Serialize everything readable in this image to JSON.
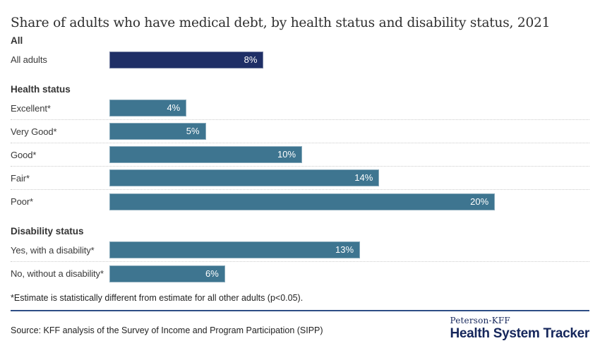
{
  "title": "Share of adults who have medical debt, by health status and disability status, 2021",
  "chart_data": {
    "type": "bar",
    "orientation": "horizontal",
    "unit": "percent",
    "xlim": [
      0,
      24.9
    ],
    "grid": "dotted-row-separators",
    "value_labels": "inside-right-white",
    "sections": [
      {
        "header": "All",
        "rows": [
          {
            "label": "All adults",
            "value": 8,
            "display": "8%"
          }
        ],
        "bar_color": "#1f2f66"
      },
      {
        "header": "Health status",
        "rows": [
          {
            "label": "Excellent*",
            "value": 4,
            "display": "4%"
          },
          {
            "label": "Very Good*",
            "value": 5,
            "display": "5%"
          },
          {
            "label": "Good*",
            "value": 10,
            "display": "10%"
          },
          {
            "label": "Fair*",
            "value": 14,
            "display": "14%"
          },
          {
            "label": "Poor*",
            "value": 20,
            "display": "20%"
          }
        ],
        "bar_color": "#3e7590"
      },
      {
        "header": "Disability status",
        "rows": [
          {
            "label": "Yes, with a disability*",
            "value": 13,
            "display": "13%"
          },
          {
            "label": "No, without a disability*",
            "value": 6,
            "display": "6%"
          }
        ],
        "bar_color": "#3e7590"
      }
    ]
  },
  "footnote": "*Estimate is statistically different from estimate for all other adults (p<0.05).",
  "source": "Source: KFF analysis of the Survey of Income and Program Participation (SIPP)",
  "logo": {
    "top": "Peterson-KFF",
    "bottom": "Health System Tracker"
  },
  "colors": {
    "all_bar": "#1f2f66",
    "category_bar": "#3e7590",
    "divider": "#2e4d85",
    "logo_navy": "#15265b",
    "separator": "#cccccc",
    "text_dark": "#333333"
  }
}
